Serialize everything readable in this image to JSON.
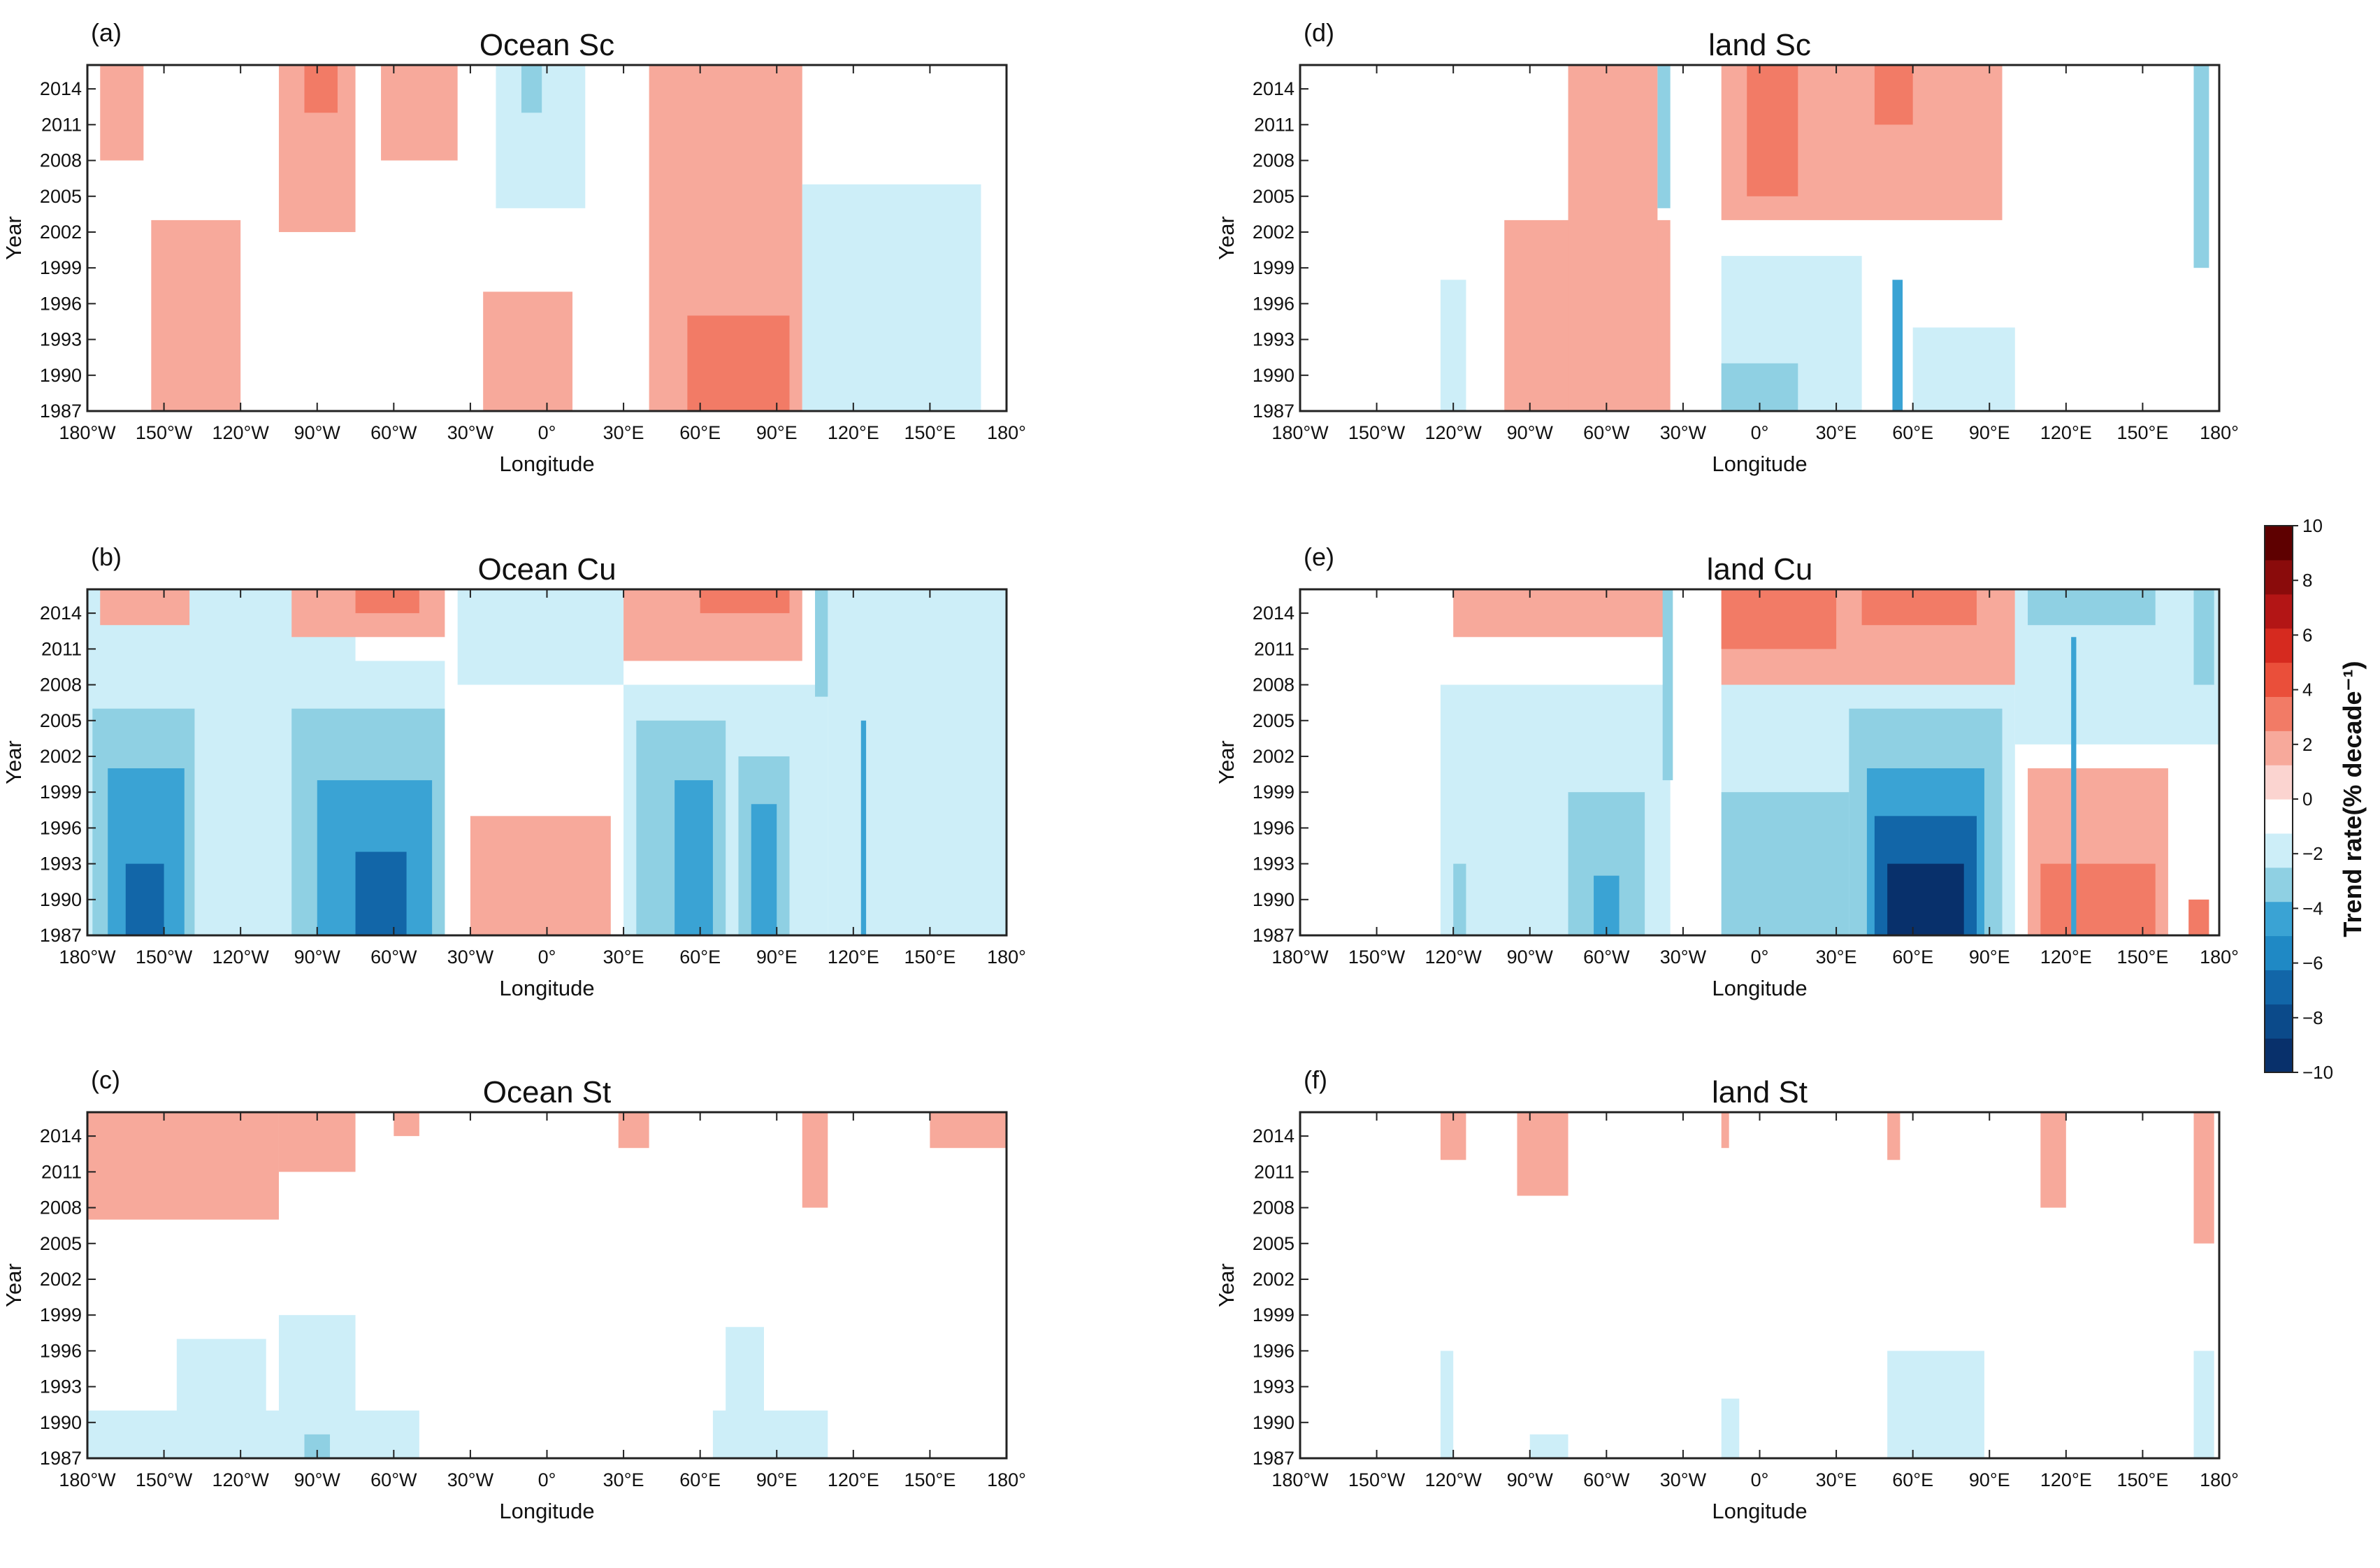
{
  "chart_data": [
    {
      "panel": "(a)",
      "title": "Ocean Sc",
      "type": "heatmap",
      "xlabel": "Longitude",
      "ylabel": "Year",
      "x_ticks": [
        "180°W",
        "150°W",
        "120°W",
        "90°W",
        "60°W",
        "30°W",
        "0°",
        "30°E",
        "60°E",
        "90°E",
        "120°E",
        "150°E",
        "180°"
      ],
      "y_ticks": [
        "2014",
        "2011",
        "2008",
        "2005",
        "2002",
        "1999",
        "1996",
        "1993",
        "1990",
        "1987"
      ],
      "xlim": [
        -180,
        180
      ],
      "ylim": [
        1987,
        2016
      ],
      "blobs": [
        {
          "lon0": -175,
          "lon1": -158,
          "y0": 2008,
          "y1": 2016,
          "v": 1.5
        },
        {
          "lon0": -155,
          "lon1": -120,
          "y0": 1987,
          "y1": 2003,
          "v": 1.5
        },
        {
          "lon0": -105,
          "lon1": -75,
          "y0": 2002,
          "y1": 2016,
          "v": 1.5
        },
        {
          "lon0": -95,
          "lon1": -82,
          "y0": 2012,
          "y1": 2016,
          "v": 3
        },
        {
          "lon0": -65,
          "lon1": -35,
          "y0": 2008,
          "y1": 2016,
          "v": 1.5
        },
        {
          "lon0": -20,
          "lon1": 15,
          "y0": 2004,
          "y1": 2016,
          "v": -1.5
        },
        {
          "lon0": -10,
          "lon1": -2,
          "y0": 2012,
          "y1": 2016,
          "v": -3
        },
        {
          "lon0": -25,
          "lon1": 10,
          "y0": 1987,
          "y1": 1997,
          "v": 1.5
        },
        {
          "lon0": 40,
          "lon1": 100,
          "y0": 1987,
          "y1": 2016,
          "v": 1.5
        },
        {
          "lon0": 55,
          "lon1": 95,
          "y0": 1987,
          "y1": 1995,
          "v": 3
        },
        {
          "lon0": 100,
          "lon1": 170,
          "y0": 1987,
          "y1": 2006,
          "v": -1.5
        }
      ]
    },
    {
      "panel": "(b)",
      "title": "Ocean Cu",
      "type": "heatmap",
      "xlabel": "Longitude",
      "ylabel": "Year",
      "x_ticks": [
        "180°W",
        "150°W",
        "120°W",
        "90°W",
        "60°W",
        "30°W",
        "0°",
        "30°E",
        "60°E",
        "90°E",
        "120°E",
        "150°E",
        "180°"
      ],
      "y_ticks": [
        "2014",
        "2011",
        "2008",
        "2005",
        "2002",
        "1999",
        "1996",
        "1993",
        "1990",
        "1987"
      ],
      "xlim": [
        -180,
        180
      ],
      "ylim": [
        1987,
        2016
      ],
      "blobs": [
        {
          "lon0": -180,
          "lon1": -75,
          "y0": 1987,
          "y1": 2016,
          "v": -1.5
        },
        {
          "lon0": -178,
          "lon1": -138,
          "y0": 1987,
          "y1": 2006,
          "v": -3
        },
        {
          "lon0": -172,
          "lon1": -142,
          "y0": 1987,
          "y1": 2001,
          "v": -5
        },
        {
          "lon0": -165,
          "lon1": -150,
          "y0": 1987,
          "y1": 1993,
          "v": -7
        },
        {
          "lon0": -175,
          "lon1": -140,
          "y0": 2013,
          "y1": 2016,
          "v": 1.5
        },
        {
          "lon0": -105,
          "lon1": -40,
          "y0": 1987,
          "y1": 2010,
          "v": -1.5
        },
        {
          "lon0": -100,
          "lon1": -40,
          "y0": 1987,
          "y1": 2006,
          "v": -3
        },
        {
          "lon0": -90,
          "lon1": -45,
          "y0": 1987,
          "y1": 2000,
          "v": -5
        },
        {
          "lon0": -75,
          "lon1": -55,
          "y0": 1987,
          "y1": 1994,
          "v": -7
        },
        {
          "lon0": -100,
          "lon1": -40,
          "y0": 2012,
          "y1": 2016,
          "v": 1.5
        },
        {
          "lon0": -75,
          "lon1": -50,
          "y0": 2014,
          "y1": 2016,
          "v": 3
        },
        {
          "lon0": -35,
          "lon1": 30,
          "y0": 2008,
          "y1": 2016,
          "v": -1.5
        },
        {
          "lon0": -30,
          "lon1": 25,
          "y0": 1987,
          "y1": 1997,
          "v": 1.5
        },
        {
          "lon0": 30,
          "lon1": 110,
          "y0": 1987,
          "y1": 2008,
          "v": -1.5
        },
        {
          "lon0": 35,
          "lon1": 70,
          "y0": 1987,
          "y1": 2005,
          "v": -3
        },
        {
          "lon0": 50,
          "lon1": 65,
          "y0": 1987,
          "y1": 2000,
          "v": -5
        },
        {
          "lon0": 75,
          "lon1": 95,
          "y0": 1987,
          "y1": 2002,
          "v": -3
        },
        {
          "lon0": 80,
          "lon1": 90,
          "y0": 1987,
          "y1": 1998,
          "v": -5
        },
        {
          "lon0": 30,
          "lon1": 100,
          "y0": 2010,
          "y1": 2016,
          "v": 1.5
        },
        {
          "lon0": 60,
          "lon1": 95,
          "y0": 2014,
          "y1": 2016,
          "v": 3
        },
        {
          "lon0": 105,
          "lon1": 120,
          "y0": 2007,
          "y1": 2016,
          "v": -3
        },
        {
          "lon0": 110,
          "lon1": 180,
          "y0": 1987,
          "y1": 2016,
          "v": -1.5
        },
        {
          "lon0": 123,
          "lon1": 125,
          "y0": 1987,
          "y1": 2005,
          "v": -5
        }
      ]
    },
    {
      "panel": "(c)",
      "title": "Ocean St",
      "type": "heatmap",
      "xlabel": "Longitude",
      "ylabel": "Year",
      "x_ticks": [
        "180°W",
        "150°W",
        "120°W",
        "90°W",
        "60°W",
        "30°W",
        "0°",
        "30°E",
        "60°E",
        "90°E",
        "120°E",
        "150°E",
        "180°"
      ],
      "y_ticks": [
        "2014",
        "2011",
        "2008",
        "2005",
        "2002",
        "1999",
        "1996",
        "1993",
        "1990",
        "1987"
      ],
      "xlim": [
        -180,
        180
      ],
      "ylim": [
        1987,
        2016
      ],
      "blobs": [
        {
          "lon0": -180,
          "lon1": -105,
          "y0": 2007,
          "y1": 2016,
          "v": 1.5
        },
        {
          "lon0": -105,
          "lon1": -75,
          "y0": 2011,
          "y1": 2016,
          "v": 1.5
        },
        {
          "lon0": -60,
          "lon1": -50,
          "y0": 2014,
          "y1": 2016,
          "v": 1.5
        },
        {
          "lon0": 28,
          "lon1": 40,
          "y0": 2013,
          "y1": 2016,
          "v": 1.5
        },
        {
          "lon0": 100,
          "lon1": 110,
          "y0": 2008,
          "y1": 2016,
          "v": 1.5
        },
        {
          "lon0": 150,
          "lon1": 180,
          "y0": 2013,
          "y1": 2016,
          "v": 1.5
        },
        {
          "lon0": -180,
          "lon1": -50,
          "y0": 1987,
          "y1": 1991,
          "v": -1.5
        },
        {
          "lon0": -145,
          "lon1": -110,
          "y0": 1987,
          "y1": 1997,
          "v": -1.5
        },
        {
          "lon0": -105,
          "lon1": -75,
          "y0": 1987,
          "y1": 1999,
          "v": -1.5
        },
        {
          "lon0": -95,
          "lon1": -85,
          "y0": 1987,
          "y1": 1989,
          "v": -3
        },
        {
          "lon0": 65,
          "lon1": 110,
          "y0": 1987,
          "y1": 1991,
          "v": -1.5
        },
        {
          "lon0": 70,
          "lon1": 85,
          "y0": 1987,
          "y1": 1998,
          "v": -1.5
        }
      ]
    },
    {
      "panel": "(d)",
      "title": "land Sc",
      "type": "heatmap",
      "xlabel": "Longitude",
      "ylabel": "Year",
      "x_ticks": [
        "180°W",
        "150°W",
        "120°W",
        "90°W",
        "60°W",
        "30°W",
        "0°",
        "30°E",
        "60°E",
        "90°E",
        "120°E",
        "150°E",
        "180°"
      ],
      "y_ticks": [
        "2014",
        "2011",
        "2008",
        "2005",
        "2002",
        "1999",
        "1996",
        "1993",
        "1990",
        "1987"
      ],
      "xlim": [
        -180,
        180
      ],
      "ylim": [
        1987,
        2016
      ],
      "blobs": [
        {
          "lon0": -125,
          "lon1": -115,
          "y0": 1987,
          "y1": 1998,
          "v": -1.5
        },
        {
          "lon0": -100,
          "lon1": -35,
          "y0": 1987,
          "y1": 2003,
          "v": 1.5
        },
        {
          "lon0": -75,
          "lon1": -40,
          "y0": 1987,
          "y1": 2016,
          "v": 1.5
        },
        {
          "lon0": -40,
          "lon1": -35,
          "y0": 2004,
          "y1": 2016,
          "v": -3
        },
        {
          "lon0": -15,
          "lon1": 95,
          "y0": 2003,
          "y1": 2016,
          "v": 1.5
        },
        {
          "lon0": -5,
          "lon1": 15,
          "y0": 2005,
          "y1": 2016,
          "v": 3
        },
        {
          "lon0": 45,
          "lon1": 60,
          "y0": 2011,
          "y1": 2016,
          "v": 3
        },
        {
          "lon0": -15,
          "lon1": 40,
          "y0": 1987,
          "y1": 2000,
          "v": -1.5
        },
        {
          "lon0": -15,
          "lon1": 15,
          "y0": 1987,
          "y1": 1991,
          "v": -3
        },
        {
          "lon0": 52,
          "lon1": 56,
          "y0": 1987,
          "y1": 1998,
          "v": -5
        },
        {
          "lon0": 60,
          "lon1": 100,
          "y0": 1987,
          "y1": 1994,
          "v": -1.5
        },
        {
          "lon0": 170,
          "lon1": 176,
          "y0": 1999,
          "y1": 2016,
          "v": -3
        }
      ]
    },
    {
      "panel": "(e)",
      "title": "land Cu",
      "type": "heatmap",
      "xlabel": "Longitude",
      "ylabel": "Year",
      "x_ticks": [
        "180°W",
        "150°W",
        "120°W",
        "90°W",
        "60°W",
        "30°W",
        "0°",
        "30°E",
        "60°E",
        "90°E",
        "120°E",
        "150°E",
        "180°"
      ],
      "y_ticks": [
        "2014",
        "2011",
        "2008",
        "2005",
        "2002",
        "1999",
        "1996",
        "1993",
        "1990",
        "1987"
      ],
      "xlim": [
        -180,
        180
      ],
      "ylim": [
        1987,
        2016
      ],
      "blobs": [
        {
          "lon0": -125,
          "lon1": -35,
          "y0": 1987,
          "y1": 2008,
          "v": -1.5
        },
        {
          "lon0": -120,
          "lon1": -115,
          "y0": 1987,
          "y1": 1993,
          "v": -3
        },
        {
          "lon0": -75,
          "lon1": -45,
          "y0": 1987,
          "y1": 1999,
          "v": -3
        },
        {
          "lon0": -65,
          "lon1": -55,
          "y0": 1987,
          "y1": 1992,
          "v": -5
        },
        {
          "lon0": -120,
          "lon1": -35,
          "y0": 2012,
          "y1": 2016,
          "v": 1.5
        },
        {
          "lon0": -38,
          "lon1": -34,
          "y0": 2000,
          "y1": 2016,
          "v": -3
        },
        {
          "lon0": -15,
          "lon1": 100,
          "y0": 1987,
          "y1": 2008,
          "v": -1.5
        },
        {
          "lon0": -15,
          "lon1": 35,
          "y0": 1987,
          "y1": 1999,
          "v": -3
        },
        {
          "lon0": 35,
          "lon1": 95,
          "y0": 1987,
          "y1": 2006,
          "v": -3
        },
        {
          "lon0": 42,
          "lon1": 88,
          "y0": 1987,
          "y1": 2001,
          "v": -5
        },
        {
          "lon0": 45,
          "lon1": 85,
          "y0": 1987,
          "y1": 1997,
          "v": -7
        },
        {
          "lon0": 50,
          "lon1": 80,
          "y0": 1987,
          "y1": 1993,
          "v": -9
        },
        {
          "lon0": -15,
          "lon1": 100,
          "y0": 2008,
          "y1": 2016,
          "v": 1.5
        },
        {
          "lon0": -15,
          "lon1": 30,
          "y0": 2011,
          "y1": 2016,
          "v": 3
        },
        {
          "lon0": 40,
          "lon1": 85,
          "y0": 2013,
          "y1": 2016,
          "v": 3
        },
        {
          "lon0": 105,
          "lon1": 160,
          "y0": 1987,
          "y1": 2001,
          "v": 1.5
        },
        {
          "lon0": 110,
          "lon1": 155,
          "y0": 1987,
          "y1": 1993,
          "v": 3
        },
        {
          "lon0": 100,
          "lon1": 180,
          "y0": 2003,
          "y1": 2016,
          "v": -1.5
        },
        {
          "lon0": 105,
          "lon1": 155,
          "y0": 2013,
          "y1": 2016,
          "v": -3
        },
        {
          "lon0": 122,
          "lon1": 124,
          "y0": 1987,
          "y1": 2012,
          "v": -5
        },
        {
          "lon0": 168,
          "lon1": 176,
          "y0": 1987,
          "y1": 1990,
          "v": 3
        },
        {
          "lon0": 170,
          "lon1": 178,
          "y0": 2008,
          "y1": 2016,
          "v": -3
        }
      ]
    },
    {
      "panel": "(f)",
      "title": "land St",
      "type": "heatmap",
      "xlabel": "Longitude",
      "ylabel": "Year",
      "x_ticks": [
        "180°W",
        "150°W",
        "120°W",
        "90°W",
        "60°W",
        "30°W",
        "0°",
        "30°E",
        "60°E",
        "90°E",
        "120°E",
        "150°E",
        "180°"
      ],
      "y_ticks": [
        "2014",
        "2011",
        "2008",
        "2005",
        "2002",
        "1999",
        "1996",
        "1993",
        "1990",
        "1987"
      ],
      "xlim": [
        -180,
        180
      ],
      "ylim": [
        1987,
        2016
      ],
      "blobs": [
        {
          "lon0": -125,
          "lon1": -115,
          "y0": 2012,
          "y1": 2016,
          "v": 1.5
        },
        {
          "lon0": -95,
          "lon1": -75,
          "y0": 2009,
          "y1": 2016,
          "v": 1.5
        },
        {
          "lon0": -15,
          "lon1": -12,
          "y0": 2013,
          "y1": 2016,
          "v": 1.5
        },
        {
          "lon0": 50,
          "lon1": 55,
          "y0": 2012,
          "y1": 2016,
          "v": 1.5
        },
        {
          "lon0": 110,
          "lon1": 120,
          "y0": 2008,
          "y1": 2016,
          "v": 1.5
        },
        {
          "lon0": 170,
          "lon1": 178,
          "y0": 2005,
          "y1": 2016,
          "v": 1.5
        },
        {
          "lon0": -125,
          "lon1": -120,
          "y0": 1987,
          "y1": 1996,
          "v": -1.5
        },
        {
          "lon0": -90,
          "lon1": -75,
          "y0": 1987,
          "y1": 1989,
          "v": -1.5
        },
        {
          "lon0": -15,
          "lon1": -8,
          "y0": 1987,
          "y1": 1992,
          "v": -1.5
        },
        {
          "lon0": 50,
          "lon1": 88,
          "y0": 1987,
          "y1": 1996,
          "v": -1.5
        },
        {
          "lon0": 170,
          "lon1": 178,
          "y0": 1987,
          "y1": 1996,
          "v": -1.5
        }
      ]
    }
  ],
  "colorbar": {
    "label": "Trend rate(% decade⁻¹)",
    "ticks": [
      "10",
      "8",
      "6",
      "4",
      "2",
      "0",
      "−2",
      "−4",
      "−6",
      "−8",
      "−10"
    ],
    "range": [
      -10,
      10
    ],
    "colors": [
      "#08306b",
      "#0b4a8a",
      "#1266a8",
      "#1f89c5",
      "#3aa3d4",
      "#8fd0e3",
      "#cdeef8",
      "#ffffff",
      "#fbd4d0",
      "#f7a99b",
      "#f27b66",
      "#ea4f3a",
      "#d62a1f",
      "#b31515",
      "#8a0b0b",
      "#5e0000"
    ]
  }
}
